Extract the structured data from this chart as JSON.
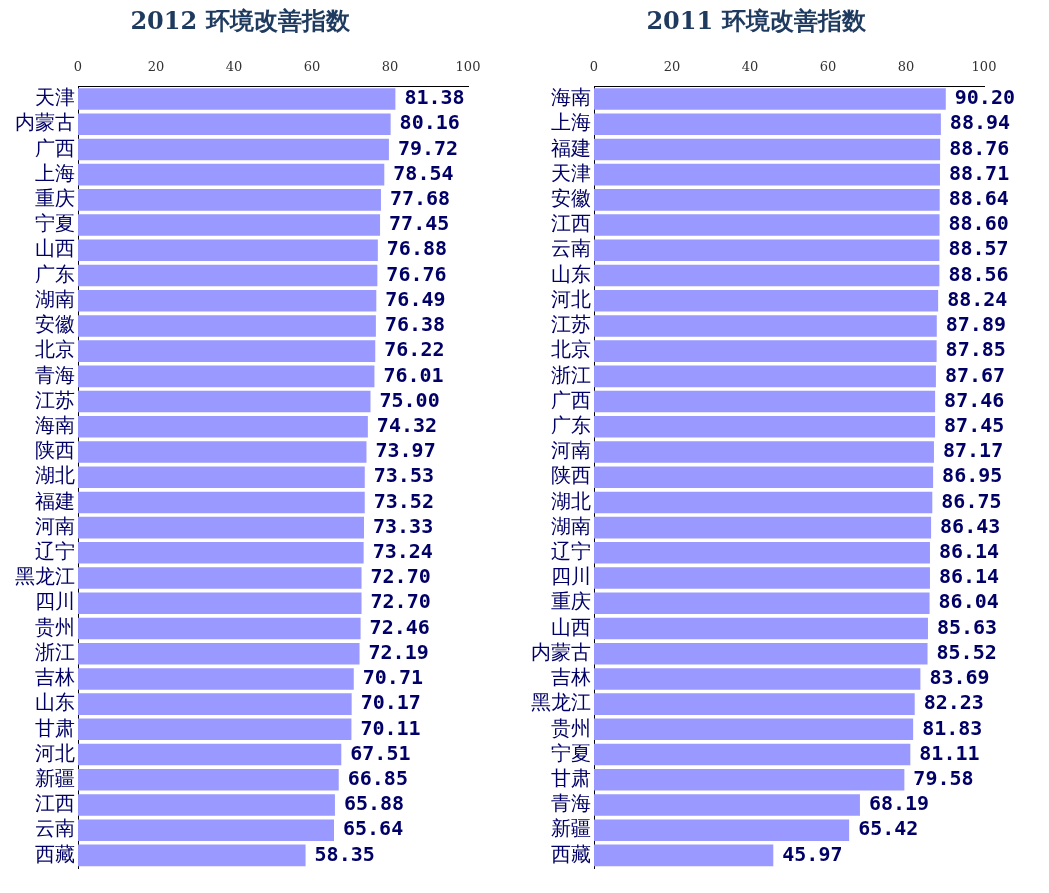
{
  "chart_data": [
    {
      "type": "bar",
      "orientation": "horizontal",
      "title": "2012 环境改善指数",
      "color": "#9999ff",
      "xlim": [
        0,
        100
      ],
      "xticks": [
        0,
        20,
        40,
        60,
        80,
        100
      ],
      "grid": false,
      "legend": false,
      "categories": [
        "天津",
        "内蒙古",
        "广西",
        "上海",
        "重庆",
        "宁夏",
        "山西",
        "广东",
        "湖南",
        "安徽",
        "北京",
        "青海",
        "江苏",
        "海南",
        "陕西",
        "湖北",
        "福建",
        "河南",
        "辽宁",
        "黑龙江",
        "四川",
        "贵州",
        "浙江",
        "吉林",
        "山东",
        "甘肃",
        "河北",
        "新疆",
        "江西",
        "云南",
        "西藏"
      ],
      "values": [
        81.38,
        80.16,
        79.72,
        78.54,
        77.68,
        77.45,
        76.88,
        76.76,
        76.49,
        76.38,
        76.22,
        76.01,
        75.0,
        74.32,
        73.97,
        73.53,
        73.52,
        73.33,
        73.24,
        72.7,
        72.7,
        72.46,
        72.19,
        70.71,
        70.17,
        70.11,
        67.51,
        66.85,
        65.88,
        65.64,
        58.35
      ],
      "value_labels": [
        "81.38",
        "80.16",
        "79.72",
        "78.54",
        "77.68",
        "77.45",
        "76.88",
        "76.76",
        "76.49",
        "76.38",
        "76.22",
        "76.01",
        "75.00",
        "74.32",
        "73.97",
        "73.53",
        "73.52",
        "73.33",
        "73.24",
        "72.70",
        "72.70",
        "72.46",
        "72.19",
        "70.71",
        "70.17",
        "70.11",
        "67.51",
        "66.85",
        "65.88",
        "65.64",
        "58.35"
      ]
    },
    {
      "type": "bar",
      "orientation": "horizontal",
      "title": "2011 环境改善指数",
      "color": "#9999ff",
      "xlim": [
        0,
        100
      ],
      "xticks": [
        0,
        20,
        40,
        60,
        80,
        100
      ],
      "grid": false,
      "legend": false,
      "categories": [
        "海南",
        "上海",
        "福建",
        "天津",
        "安徽",
        "江西",
        "云南",
        "山东",
        "河北",
        "江苏",
        "北京",
        "浙江",
        "广西",
        "广东",
        "河南",
        "陕西",
        "湖北",
        "湖南",
        "辽宁",
        "四川",
        "重庆",
        "山西",
        "内蒙古",
        "吉林",
        "黑龙江",
        "贵州",
        "宁夏",
        "甘肃",
        "青海",
        "新疆",
        "西藏"
      ],
      "values": [
        90.2,
        88.94,
        88.76,
        88.71,
        88.64,
        88.6,
        88.57,
        88.56,
        88.24,
        87.89,
        87.85,
        87.67,
        87.46,
        87.45,
        87.17,
        86.95,
        86.75,
        86.43,
        86.14,
        86.14,
        86.04,
        85.63,
        85.52,
        83.69,
        82.23,
        81.83,
        81.11,
        79.58,
        68.19,
        65.42,
        45.97
      ],
      "value_labels": [
        "90.20",
        "88.94",
        "88.76",
        "88.71",
        "88.64",
        "88.60",
        "88.57",
        "88.56",
        "88.24",
        "87.89",
        "87.85",
        "87.67",
        "87.46",
        "87.45",
        "87.17",
        "86.95",
        "86.75",
        "86.43",
        "86.14",
        "86.14",
        "86.04",
        "85.63",
        "85.52",
        "83.69",
        "82.23",
        "81.83",
        "81.11",
        "79.58",
        "68.19",
        "65.42",
        "45.97"
      ]
    }
  ]
}
